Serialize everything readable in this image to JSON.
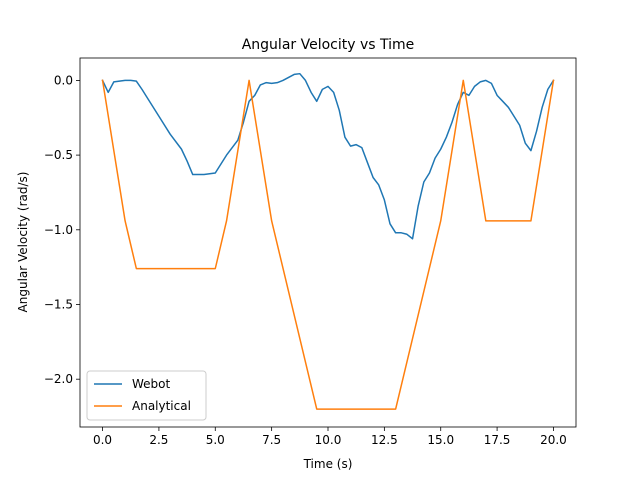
{
  "chart_data": {
    "type": "line",
    "title": "Angular Velocity vs Time",
    "xlabel": "Time (s)",
    "ylabel": "Angular Velocity (rad/s)",
    "xlim": [
      -1.0,
      21.0
    ],
    "ylim": [
      -2.32,
      0.15
    ],
    "xticks": [
      0.0,
      2.5,
      5.0,
      7.5,
      10.0,
      12.5,
      15.0,
      17.5,
      20.0
    ],
    "xtick_labels": [
      "0.0",
      "2.5",
      "5.0",
      "7.5",
      "10.0",
      "12.5",
      "15.0",
      "17.5",
      "20.0"
    ],
    "yticks": [
      0.0,
      -0.5,
      -1.0,
      -1.5,
      -2.0
    ],
    "ytick_labels": [
      "0.0",
      "−0.5",
      "−1.0",
      "−1.5",
      "−2.0"
    ],
    "legend_position": "lower-left",
    "series": [
      {
        "name": "Webot",
        "color": "#1f77b4",
        "x": [
          0.0,
          0.25,
          0.5,
          0.75,
          1.0,
          1.25,
          1.5,
          1.75,
          2.0,
          2.5,
          3.0,
          3.5,
          3.75,
          4.0,
          4.25,
          4.5,
          4.75,
          5.0,
          5.5,
          6.0,
          6.25,
          6.5,
          6.75,
          7.0,
          7.25,
          7.5,
          7.75,
          8.0,
          8.25,
          8.5,
          8.75,
          9.0,
          9.25,
          9.5,
          9.75,
          10.0,
          10.25,
          10.5,
          10.75,
          11.0,
          11.25,
          11.5,
          11.75,
          12.0,
          12.25,
          12.5,
          12.75,
          13.0,
          13.25,
          13.5,
          13.75,
          14.0,
          14.25,
          14.5,
          14.75,
          15.0,
          15.25,
          15.5,
          15.75,
          16.0,
          16.25,
          16.5,
          16.75,
          17.0,
          17.25,
          17.5,
          17.75,
          18.0,
          18.25,
          18.5,
          18.75,
          19.0,
          19.25,
          19.5,
          19.75,
          20.0
        ],
        "y": [
          0.0,
          -0.08,
          -0.01,
          -0.005,
          0.0,
          0.0,
          -0.005,
          -0.06,
          -0.12,
          -0.24,
          -0.36,
          -0.46,
          -0.54,
          -0.63,
          -0.63,
          -0.63,
          -0.625,
          -0.62,
          -0.5,
          -0.4,
          -0.28,
          -0.14,
          -0.1,
          -0.03,
          -0.015,
          -0.02,
          -0.015,
          0.0,
          0.02,
          0.04,
          0.045,
          0.0,
          -0.08,
          -0.14,
          -0.06,
          -0.04,
          -0.08,
          -0.2,
          -0.38,
          -0.44,
          -0.43,
          -0.45,
          -0.55,
          -0.65,
          -0.7,
          -0.8,
          -0.96,
          -1.02,
          -1.02,
          -1.03,
          -1.06,
          -0.84,
          -0.68,
          -0.62,
          -0.52,
          -0.46,
          -0.38,
          -0.28,
          -0.16,
          -0.08,
          -0.1,
          -0.04,
          -0.01,
          0.0,
          -0.02,
          -0.1,
          -0.14,
          -0.18,
          -0.24,
          -0.3,
          -0.42,
          -0.47,
          -0.34,
          -0.18,
          -0.06,
          0.0
        ]
      },
      {
        "name": "Analytical",
        "color": "#ff7f0e",
        "x": [
          0.0,
          1.0,
          1.5,
          5.0,
          5.5,
          6.5,
          7.5,
          9.5,
          13.0,
          15.0,
          16.0,
          17.0,
          19.0,
          20.0
        ],
        "y": [
          0.0,
          -0.94,
          -1.26,
          -1.26,
          -0.94,
          0.0,
          -0.94,
          -2.2,
          -2.2,
          -0.94,
          0.0,
          -0.94,
          -0.94,
          0.0
        ]
      }
    ]
  }
}
